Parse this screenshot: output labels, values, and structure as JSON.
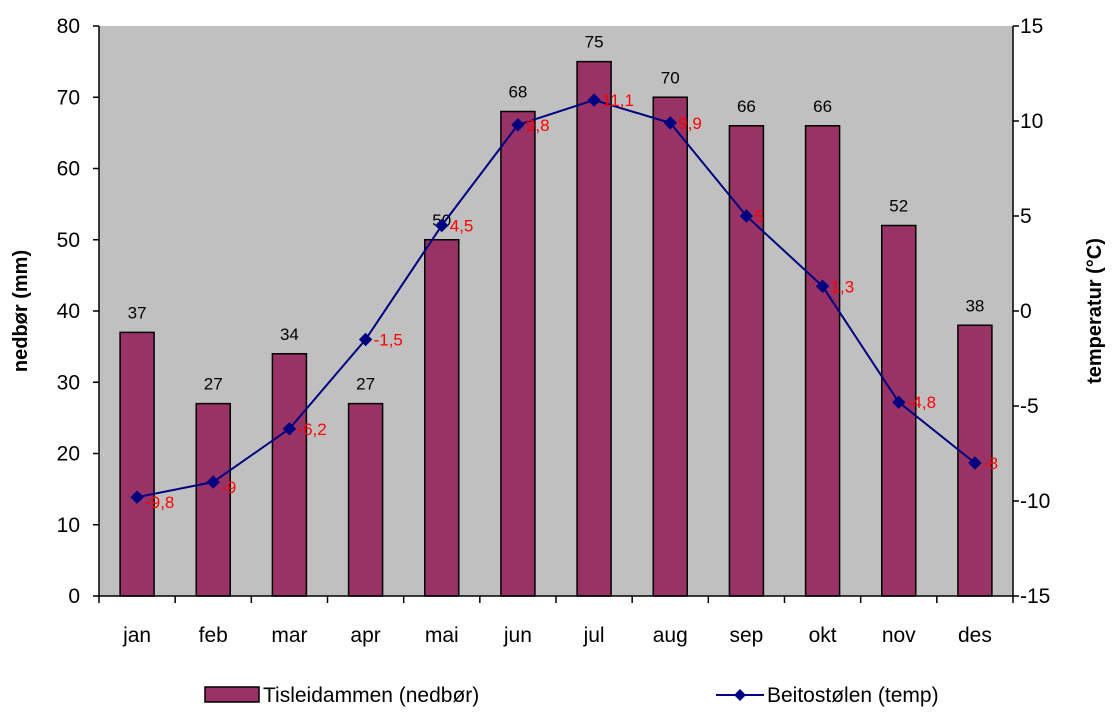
{
  "chart_data": {
    "type": "bar",
    "categories": [
      "jan",
      "feb",
      "mar",
      "apr",
      "mai",
      "jun",
      "jul",
      "aug",
      "sep",
      "okt",
      "nov",
      "des"
    ],
    "series": [
      {
        "name": "Tisleidammen (nedbør)",
        "type": "bar",
        "axis": "left",
        "values": [
          37,
          27,
          34,
          27,
          50,
          68,
          75,
          70,
          66,
          66,
          52,
          38
        ],
        "labels": [
          "37",
          "27",
          "34",
          "27",
          "50",
          "68",
          "75",
          "70",
          "66",
          "66",
          "52",
          "38"
        ],
        "color": "#993366"
      },
      {
        "name": "Beitostølen (temp)",
        "type": "line",
        "axis": "right",
        "values": [
          -9.8,
          -9,
          -6.2,
          -1.5,
          4.5,
          9.8,
          11.1,
          9.9,
          5,
          1.3,
          -4.8,
          -8
        ],
        "labels": [
          "-9,8",
          "-9",
          "-6,2",
          "-1,5",
          "4,5",
          "9,8",
          "11,1",
          "9,9",
          "5",
          "1,3",
          "-4,8",
          "-8"
        ],
        "color": "#000080",
        "label_color": "#ff0000"
      }
    ],
    "ylabel": "nedbør (mm)",
    "y2label": "temperatur (°C)",
    "ylim": [
      0,
      80
    ],
    "y2lim": [
      -15,
      15
    ],
    "yticks": [
      "0",
      "10",
      "20",
      "30",
      "40",
      "50",
      "60",
      "70",
      "80"
    ],
    "y2ticks": [
      "-15",
      "-10",
      "-5",
      "0",
      "5",
      "10",
      "15"
    ],
    "plot_background": "#c0c0c0",
    "grid": false,
    "legend_position": "bottom"
  }
}
